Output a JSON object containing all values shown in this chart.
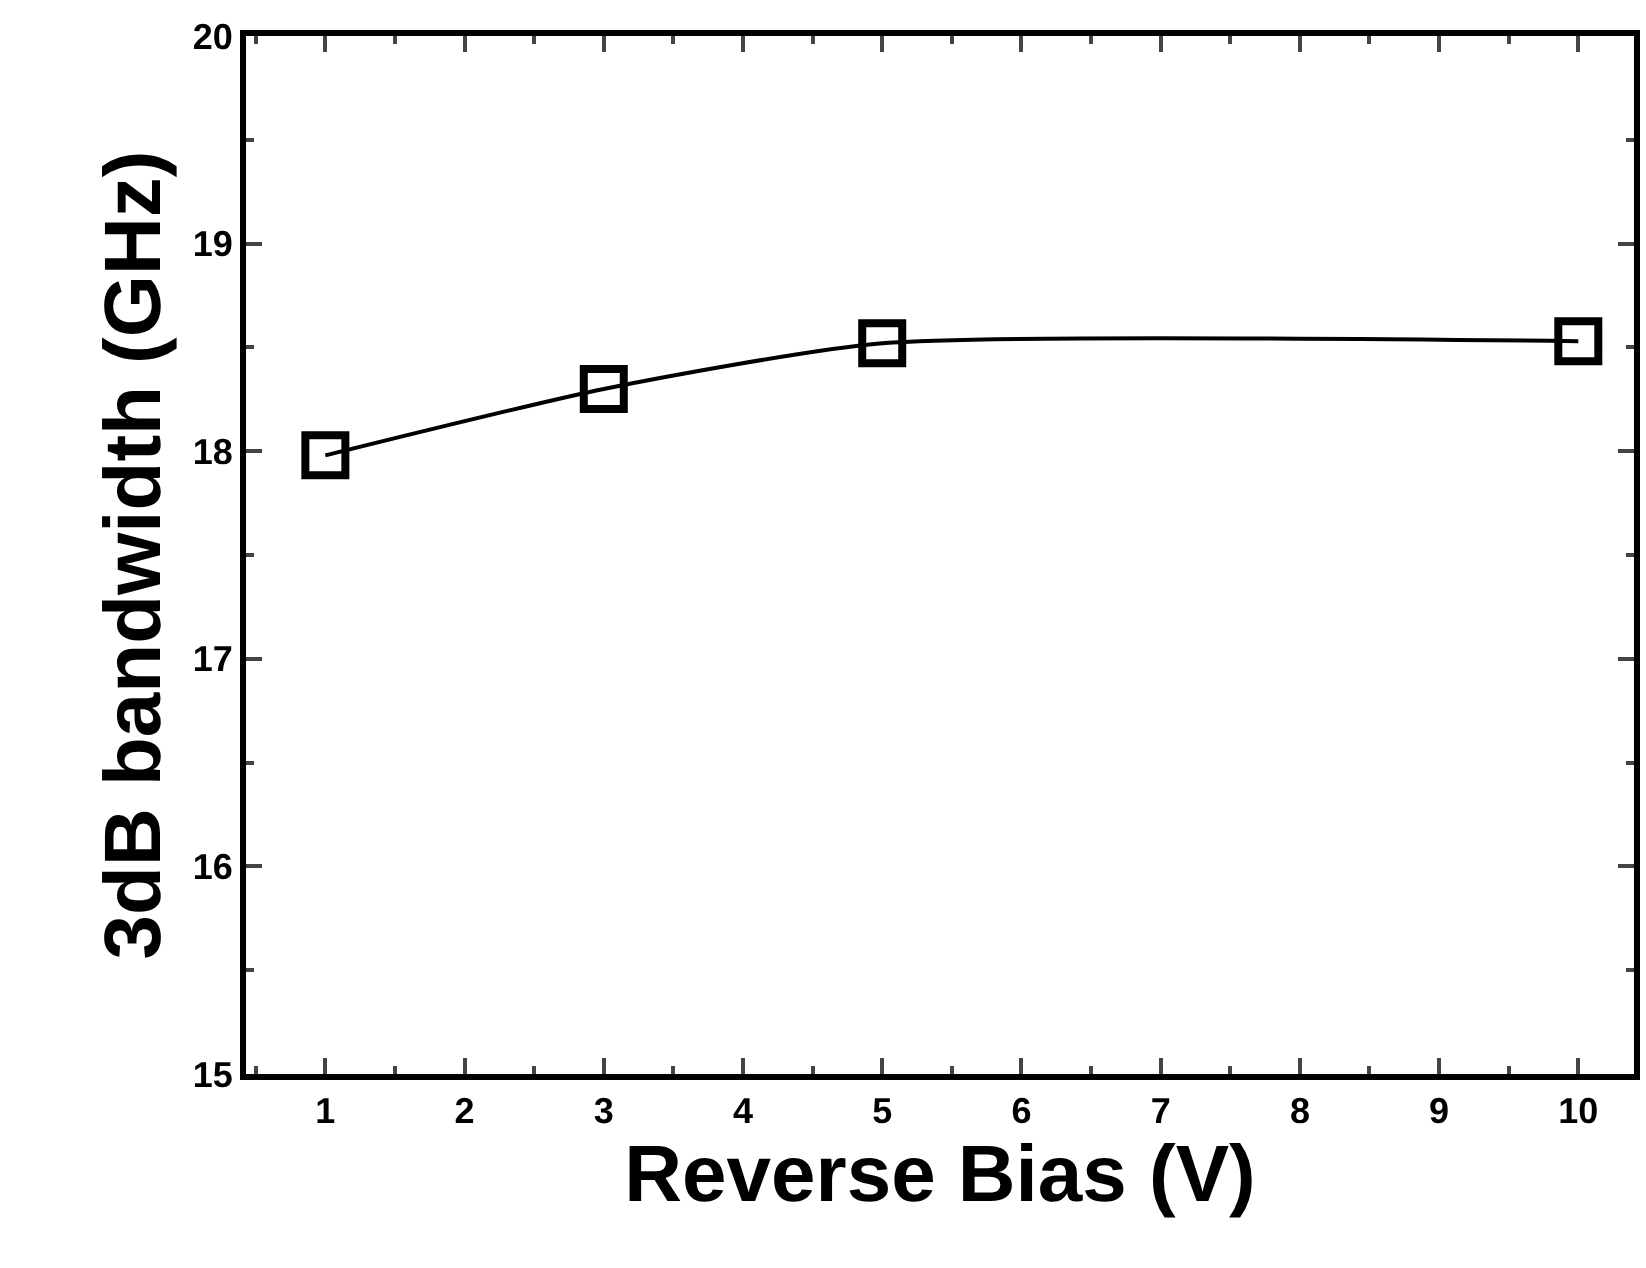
{
  "chart_data": {
    "type": "line",
    "xlabel": "Reverse Bias (V)",
    "ylabel": "3dB bandwidth (GHz)",
    "x": [
      1,
      3,
      5,
      10
    ],
    "series": [
      {
        "color": "#000000",
        "values": [
          17.98,
          18.3,
          18.52,
          18.53
        ]
      }
    ],
    "xlim": [
      0.43,
      10.4
    ],
    "xticks": [
      1,
      2,
      3,
      4,
      5,
      6,
      7,
      8,
      9,
      10
    ],
    "ylim": [
      15,
      20
    ],
    "yticks": [
      15,
      16,
      17,
      18,
      19,
      20
    ],
    "legend": false,
    "marker": "square",
    "line_style": "solid"
  }
}
